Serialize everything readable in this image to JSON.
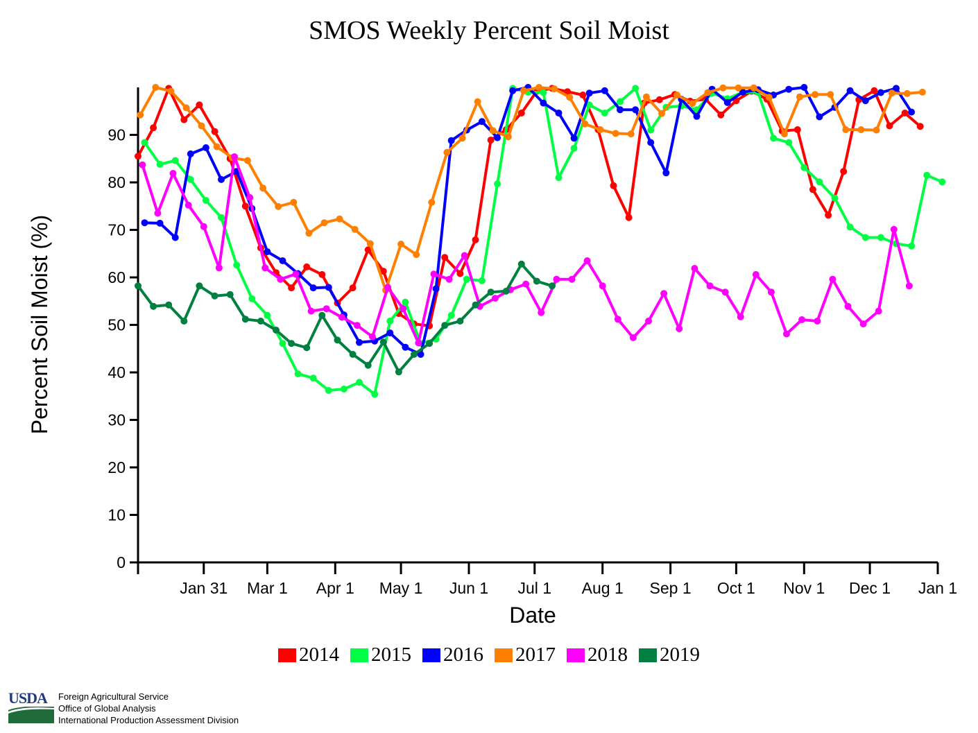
{
  "chart_data": {
    "type": "line",
    "title": "SMOS Weekly Percent Soil Moist",
    "xlabel": "Date",
    "ylabel": "Percent Soil Moist (%)",
    "ylim": [
      0,
      100
    ],
    "yticks": [
      0,
      10,
      20,
      30,
      40,
      50,
      60,
      70,
      80,
      90
    ],
    "xlim_day_of_year": [
      1,
      366
    ],
    "xticks": [
      {
        "label": "Jan 31",
        "day": 31
      },
      {
        "label": "Mar 1",
        "day": 60
      },
      {
        "label": "Apr 1",
        "day": 91
      },
      {
        "label": "May 1",
        "day": 121
      },
      {
        "label": "Jun 1",
        "day": 152
      },
      {
        "label": "Jul 1",
        "day": 182
      },
      {
        "label": "Aug 1",
        "day": 213
      },
      {
        "label": "Sep 1",
        "day": 244
      },
      {
        "label": "Oct 1",
        "day": 274
      },
      {
        "label": "Nov 1",
        "day": 305
      },
      {
        "label": "Dec 1",
        "day": 335
      },
      {
        "label": "Jan 1",
        "day": 366
      }
    ],
    "series": [
      {
        "name": "2014",
        "color": "#ff0000",
        "start_day": 1,
        "step_days": 7,
        "values": [
          85.5,
          91.5,
          99.8,
          93.2,
          96.3,
          90.7,
          85.0,
          75.0,
          66.2,
          61.0,
          57.8,
          62.2,
          60.6,
          54.6,
          57.8,
          65.8,
          61.3,
          52.4,
          50.2,
          49.8,
          64.2,
          60.8,
          67.9,
          88.9,
          91.1,
          94.6,
          99.2,
          99.8,
          99.1,
          98.4,
          91.1,
          79.3,
          72.6,
          96.7,
          97.4,
          98.5,
          97.1,
          97.5,
          94.2,
          97.2,
          99.2,
          97.5,
          90.8,
          91.1,
          78.5,
          73.1,
          82.3,
          97.4,
          99.3,
          91.9,
          94.6,
          91.8
        ]
      },
      {
        "name": "2015",
        "color": "#00ff44",
        "start_day": 4,
        "step_days": 7,
        "values": [
          88.4,
          83.8,
          84.6,
          80.6,
          76.2,
          72.6,
          62.6,
          55.5,
          52.0,
          46.1,
          39.7,
          38.8,
          36.2,
          36.5,
          37.9,
          35.4,
          50.8,
          54.8,
          46.1,
          47.0,
          52.0,
          59.6,
          59.3,
          79.7,
          99.8,
          99.0,
          98.9,
          81.0,
          87.2,
          96.3,
          94.6,
          97.0,
          99.8,
          91.0,
          95.8,
          96.1,
          95.3,
          98.8,
          97.6,
          99.0,
          99.0,
          89.3,
          88.4,
          83.1,
          80.1,
          76.7,
          70.6,
          68.4,
          68.4,
          67.1,
          66.6,
          81.5,
          80.1
        ]
      },
      {
        "name": "2016",
        "color": "#0000ff",
        "start_day": 4,
        "step_days": 7,
        "values": [
          71.5,
          71.4,
          68.4,
          86.0,
          87.3,
          80.6,
          82.3,
          74.5,
          65.4,
          63.5,
          60.8,
          57.8,
          57.9,
          52.1,
          46.3,
          46.6,
          48.3,
          45.3,
          43.8,
          57.6,
          88.8,
          91.0,
          92.8,
          89.4,
          99.3,
          100.0,
          96.7,
          94.6,
          89.3,
          98.8,
          99.3,
          95.3,
          95.3,
          88.4,
          82.0,
          97.5,
          93.9,
          99.6,
          96.8,
          99.0,
          99.5,
          98.4,
          99.6,
          100.0,
          93.8,
          95.8,
          99.3,
          97.2,
          98.9,
          99.8,
          94.8
        ]
      },
      {
        "name": "2017",
        "color": "#ff8000",
        "start_day": 2,
        "step_days": 7,
        "values": [
          94.2,
          100.0,
          99.2,
          95.7,
          91.9,
          87.5,
          85.2,
          84.6,
          78.8,
          74.9,
          75.8,
          69.3,
          71.5,
          72.3,
          70.1,
          67.1,
          57.3,
          67.0,
          64.8,
          75.8,
          86.3,
          89.3,
          97.0,
          90.9,
          89.6,
          99.3,
          100.0,
          99.7,
          97.9,
          92.3,
          91.1,
          90.3,
          90.2,
          98.0,
          94.5,
          98.4,
          96.6,
          98.9,
          99.9,
          99.9,
          99.9,
          97.9,
          90.2,
          98.0,
          98.5,
          98.5,
          91.1,
          91.1,
          91.0,
          98.8,
          98.7,
          99.0
        ]
      },
      {
        "name": "2018",
        "color": "#ff00ff",
        "start_day": 3,
        "step_days": 7,
        "values": [
          83.7,
          73.5,
          81.9,
          75.2,
          70.7,
          62.0,
          85.4,
          76.8,
          62.0,
          59.6,
          60.7,
          52.9,
          53.4,
          51.6,
          49.9,
          47.5,
          57.9,
          53.4,
          46.2,
          60.7,
          59.6,
          64.6,
          53.9,
          55.6,
          57.4,
          58.6,
          52.6,
          59.6,
          59.6,
          63.5,
          58.2,
          51.2,
          47.3,
          50.8,
          56.6,
          49.2,
          61.9,
          58.2,
          56.9,
          51.7,
          60.6,
          56.9,
          48.1,
          51.1,
          50.8,
          59.6,
          53.9,
          50.2,
          52.9,
          70.1,
          58.2
        ]
      },
      {
        "name": "2019",
        "color": "#008040",
        "start_day": 1,
        "step_days": 7,
        "values": [
          58.2,
          53.9,
          54.2,
          50.8,
          58.2,
          56.1,
          56.4,
          51.2,
          50.8,
          48.9,
          46.1,
          45.2,
          52.0,
          46.8,
          43.8,
          41.5,
          46.4,
          40.1,
          43.8,
          46.1,
          49.9,
          50.8,
          54.2,
          56.9,
          57.1,
          62.8,
          59.2,
          58.2
        ]
      }
    ]
  },
  "footer": {
    "logo_text": "USDA",
    "line1": "Foreign Agricultural Service",
    "line2": "Office of Global Analysis",
    "line3": "International Production Assessment Division"
  }
}
